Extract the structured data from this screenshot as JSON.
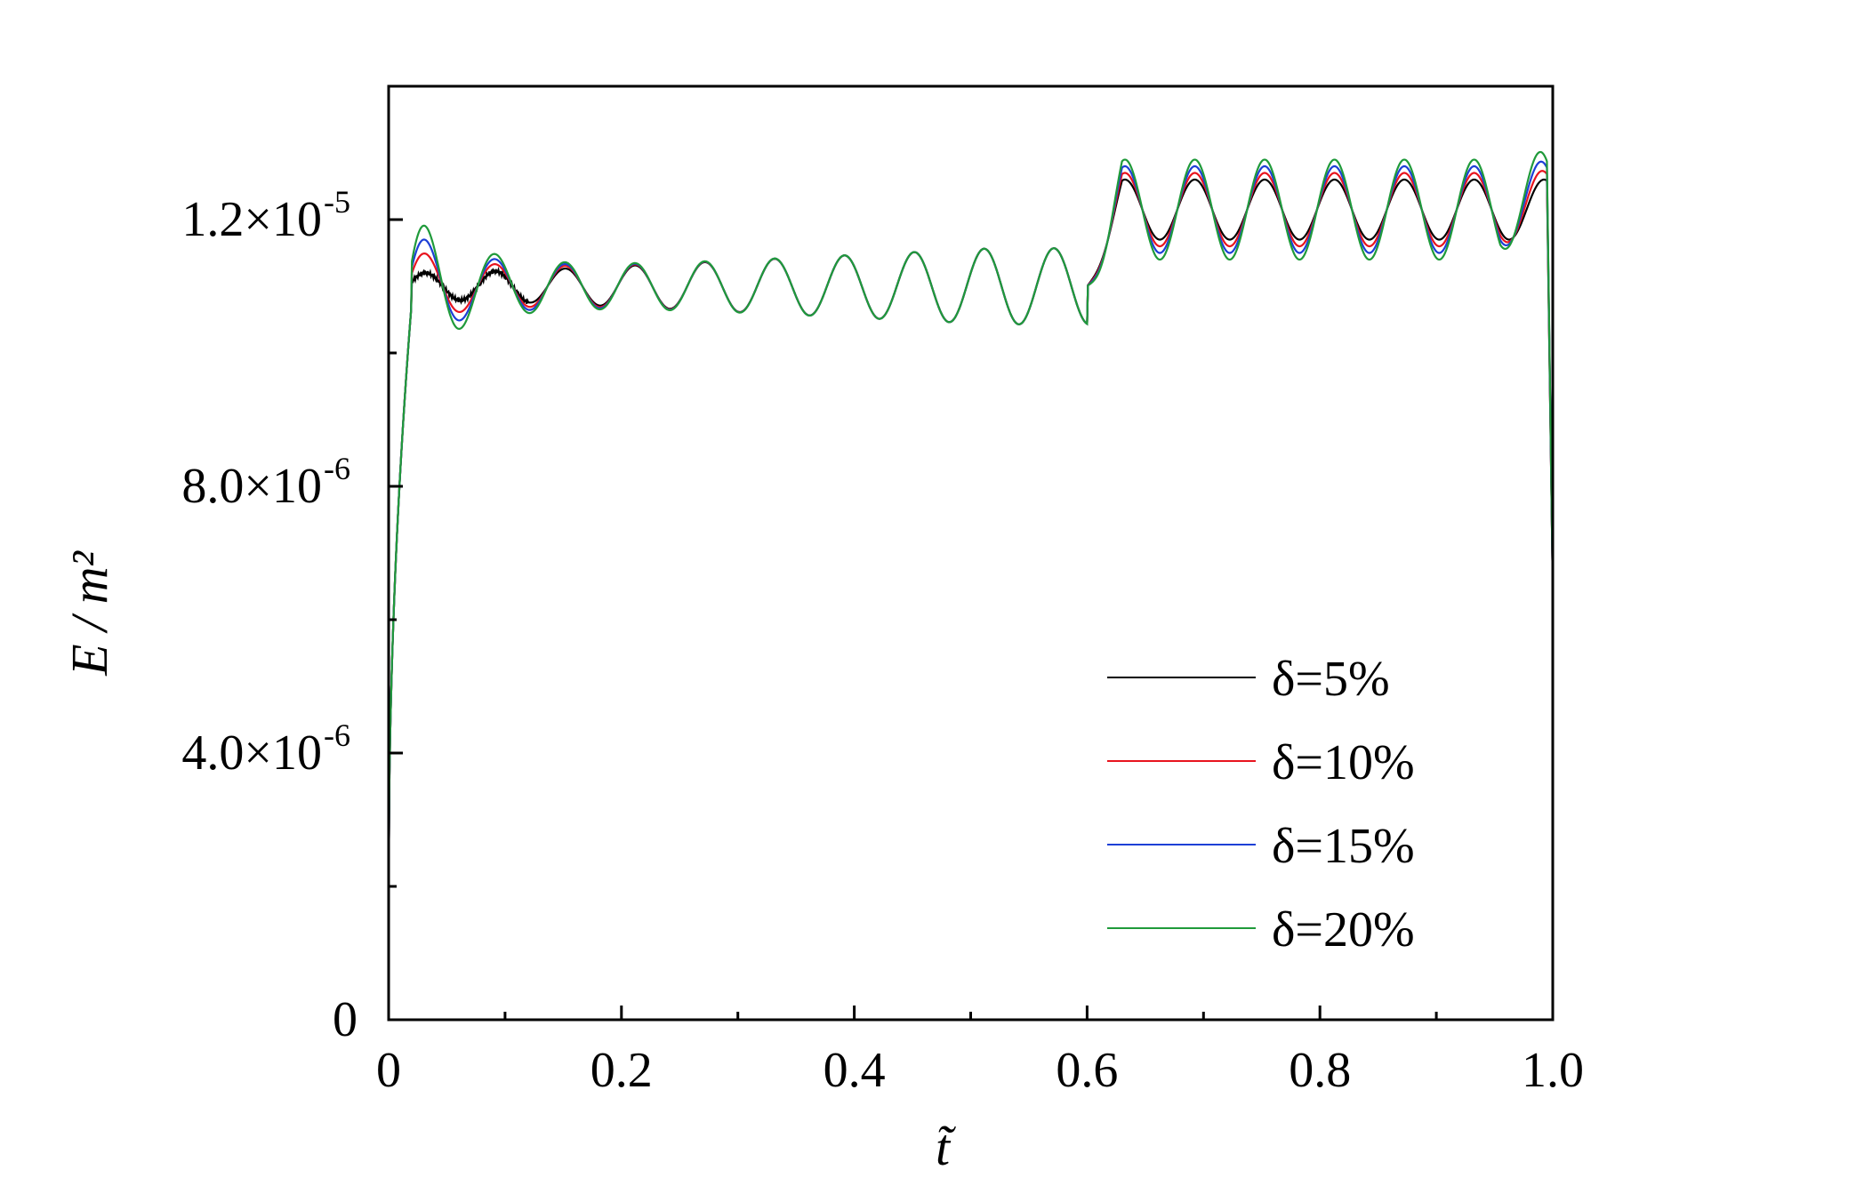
{
  "chart_data": {
    "type": "line",
    "xlabel": "t̃",
    "ylabel": "E / m²",
    "xlim": [
      0,
      1.0
    ],
    "ylim": [
      0,
      1.4e-05
    ],
    "x_ticks": [
      {
        "value": 0,
        "label": "0"
      },
      {
        "value": 0.2,
        "label": "0.2"
      },
      {
        "value": 0.4,
        "label": "0.4"
      },
      {
        "value": 0.6,
        "label": "0.6"
      },
      {
        "value": 0.8,
        "label": "0.8"
      },
      {
        "value": 1.0,
        "label": "1.0"
      }
    ],
    "y_ticks": [
      {
        "value": 0,
        "label": "0",
        "exp": ""
      },
      {
        "value": 4e-06,
        "label": "4.0×10",
        "exp": "-6"
      },
      {
        "value": 8e-06,
        "label": "8.0×10",
        "exp": "-6"
      },
      {
        "value": 1.2e-05,
        "label": "1.2×10",
        "exp": "-5"
      }
    ],
    "grid": false,
    "legend_position": "bottom-right",
    "series": [
      {
        "name": "δ=5%",
        "color": "#000000",
        "amp1": 5e-08,
        "amp2": 4.5e-07,
        "offset": 0.0
      },
      {
        "name": "δ=10%",
        "color": "#e8141e",
        "amp1": 4e-07,
        "amp2": 5.5e-07,
        "offset": 0.0
      },
      {
        "name": "δ=15%",
        "color": "#1d3fd6",
        "amp1": 6.5e-07,
        "amp2": 6.5e-07,
        "offset": 0.0
      },
      {
        "name": "δ=20%",
        "color": "#1f9a3a",
        "amp1": 9e-07,
        "amp2": 7.5e-07,
        "offset": 0.0
      }
    ]
  }
}
